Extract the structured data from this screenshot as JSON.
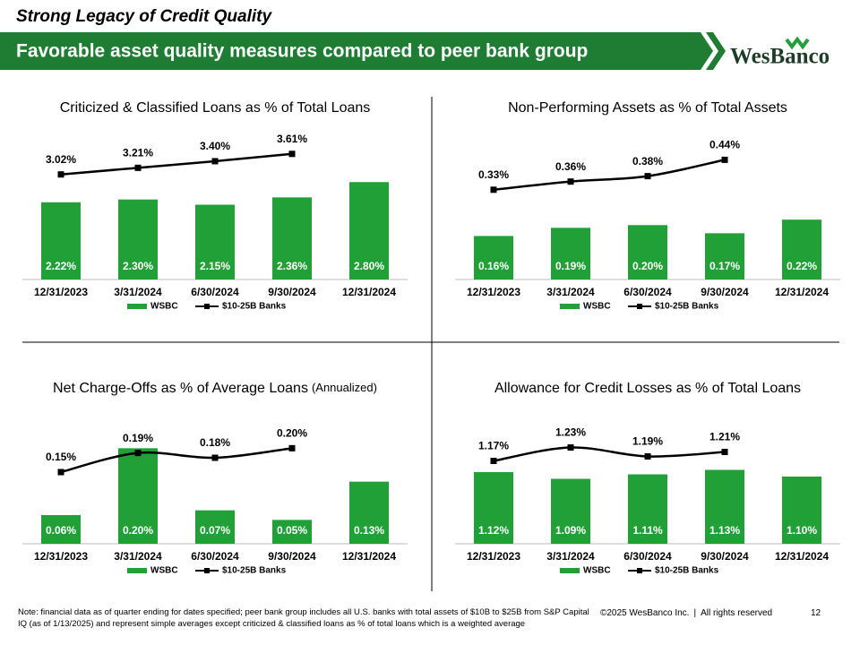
{
  "header": {
    "title": "Strong Legacy of Credit Quality",
    "banner": "Favorable asset quality measures compared to peer bank group",
    "logo": "WesBanco"
  },
  "chart_data": [
    {
      "type": "bar_line",
      "title": "Criticized & Classified Loans as % of Total Loans",
      "categories": [
        "12/31/2023",
        "3/31/2024",
        "6/30/2024",
        "9/30/2024",
        "12/31/2024"
      ],
      "series": [
        {
          "name": "WSBC",
          "type": "bar",
          "color": "#21a038",
          "values": [
            2.22,
            2.3,
            2.15,
            2.36,
            2.8
          ],
          "value_labels": [
            "2.22%",
            "2.30%",
            "2.15%",
            "2.36%",
            "2.80%"
          ]
        },
        {
          "name": "$10-25B Banks",
          "type": "line",
          "color": "#000000",
          "values": [
            3.02,
            3.21,
            3.4,
            3.61,
            null
          ],
          "value_labels": [
            "3.02%",
            "3.21%",
            "3.40%",
            "3.61%",
            null
          ]
        }
      ],
      "ylim": [
        0,
        4.3
      ],
      "smooth": false
    },
    {
      "type": "bar_line",
      "title": "Non-Performing Assets as % of Total Assets",
      "categories": [
        "12/31/2023",
        "3/31/2024",
        "6/30/2024",
        "9/30/2024",
        "12/31/2024"
      ],
      "series": [
        {
          "name": "WSBC",
          "type": "bar",
          "color": "#21a038",
          "values": [
            0.16,
            0.19,
            0.2,
            0.17,
            0.22
          ],
          "value_labels": [
            "0.16%",
            "0.19%",
            "0.20%",
            "0.17%",
            "0.22%"
          ]
        },
        {
          "name": "$10-25B Banks",
          "type": "line",
          "color": "#000000",
          "values": [
            0.33,
            0.36,
            0.38,
            0.44,
            null
          ],
          "value_labels": [
            "0.33%",
            "0.36%",
            "0.38%",
            "0.44%",
            null
          ]
        }
      ],
      "ylim": [
        0,
        0.55
      ],
      "smooth": true
    },
    {
      "type": "bar_line",
      "title": "Net Charge-Offs as % of Average Loans",
      "title_note": "(Annualized)",
      "categories": [
        "12/31/2023",
        "3/31/2024",
        "6/30/2024",
        "9/30/2024",
        "12/31/2024"
      ],
      "series": [
        {
          "name": "WSBC",
          "type": "bar",
          "color": "#21a038",
          "values": [
            0.06,
            0.2,
            0.07,
            0.05,
            0.13
          ],
          "value_labels": [
            "0.06%",
            "0.20%",
            "0.07%",
            "0.05%",
            "0.13%"
          ]
        },
        {
          "name": "$10-25B Banks",
          "type": "line",
          "color": "#000000",
          "values": [
            0.15,
            0.19,
            0.18,
            0.2,
            null
          ],
          "value_labels": [
            "0.15%",
            "0.19%",
            "0.18%",
            "0.20%",
            null
          ]
        }
      ],
      "ylim": [
        0,
        0.3
      ],
      "smooth": true
    },
    {
      "type": "bar_line",
      "title": "Allowance for Credit Losses as % of Total Loans",
      "categories": [
        "12/31/2023",
        "3/31/2024",
        "6/30/2024",
        "9/30/2024",
        "12/31/2024"
      ],
      "series": [
        {
          "name": "WSBC",
          "type": "bar",
          "color": "#21a038",
          "values": [
            1.12,
            1.09,
            1.11,
            1.13,
            1.1
          ],
          "value_labels": [
            "1.12%",
            "1.09%",
            "1.11%",
            "1.13%",
            "1.10%"
          ]
        },
        {
          "name": "$10-25B Banks",
          "type": "line",
          "color": "#000000",
          "values": [
            1.17,
            1.23,
            1.19,
            1.21,
            null
          ],
          "value_labels": [
            "1.17%",
            "1.23%",
            "1.19%",
            "1.21%",
            null
          ]
        }
      ],
      "ylim": [
        0.8,
        1.44
      ],
      "smooth": true
    }
  ],
  "footer": {
    "note": "Note:  financial data as of quarter ending for dates specified; peer bank group includes all U.S. banks with total assets of $10B to $25B from S&P Capital IQ (as of 1/13/2025) and represent simple averages except criticized & classified loans as % of total loans which is a weighted average",
    "copyright": "©2025 WesBanco Inc.",
    "separator": "|",
    "rights": "All rights reserved",
    "page": "12"
  }
}
